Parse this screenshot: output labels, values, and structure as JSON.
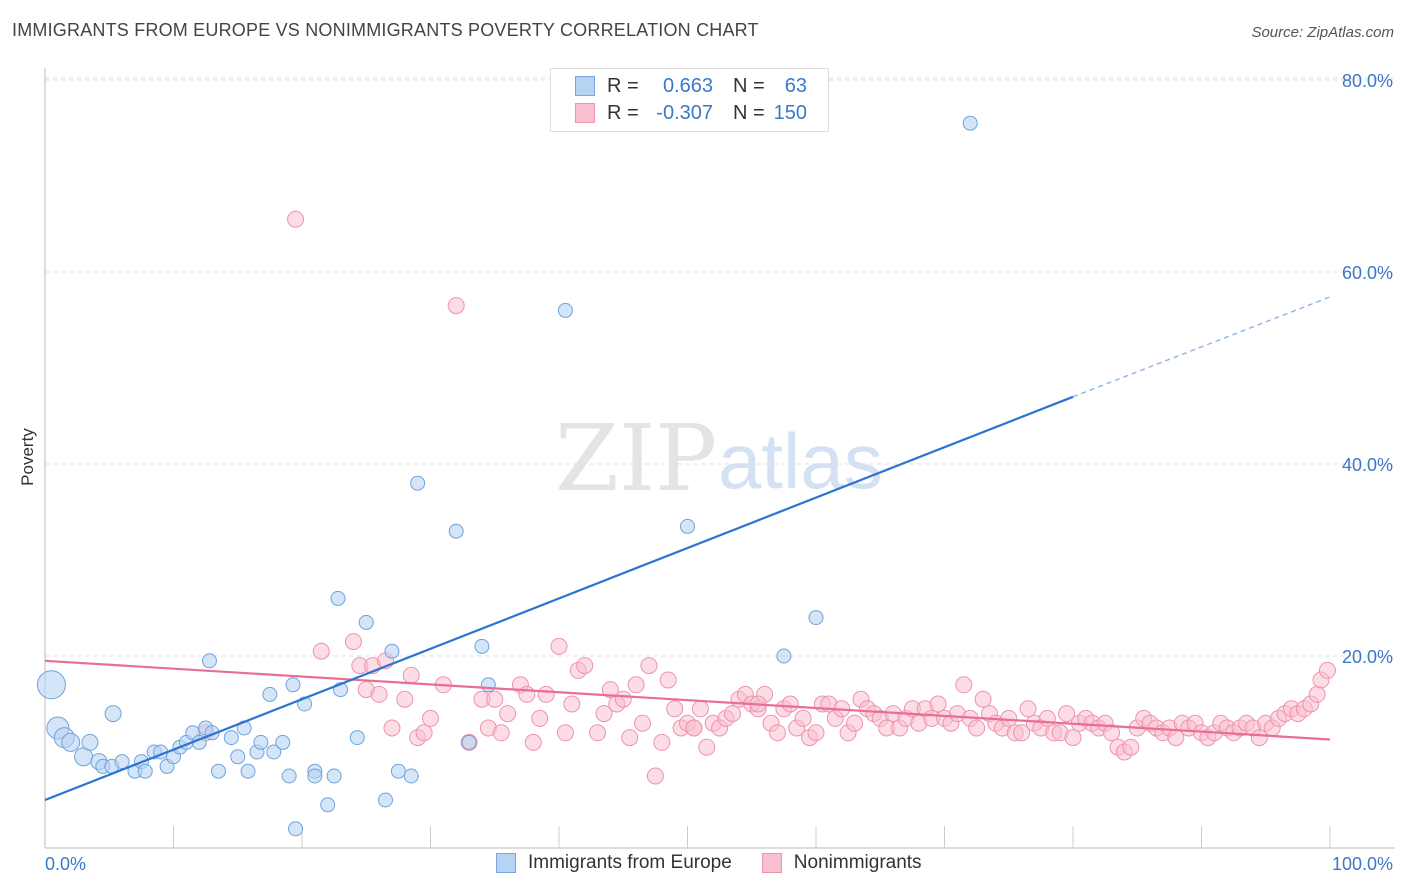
{
  "title": "IMMIGRANTS FROM EUROPE VS NONIMMIGRANTS POVERTY CORRELATION CHART",
  "source": "Source: ZipAtlas.com",
  "watermark": {
    "zip": "ZIP",
    "atlas": "atlas"
  },
  "legend": {
    "rows": [
      {
        "r_label": "R =",
        "r_value": "0.663",
        "n_label": "N =",
        "n_value": "63",
        "fill": "#b7d3f2",
        "stroke": "#7aa7db"
      },
      {
        "r_label": "R =",
        "r_value": "-0.307",
        "n_label": "N =",
        "n_value": "150",
        "fill": "#f9c0d0",
        "stroke": "#ee94ad"
      }
    ]
  },
  "bottom_legend": [
    {
      "label": "Immigrants from Europe",
      "fill": "#b7d3f2",
      "stroke": "#7aa7db"
    },
    {
      "label": "Nonimmigrants",
      "fill": "#f9c0d0",
      "stroke": "#ee94ad"
    }
  ],
  "chart_data": {
    "type": "scatter",
    "title": "IMMIGRANTS FROM EUROPE VS NONIMMIGRANTS POVERTY CORRELATION CHART",
    "xlabel": "",
    "ylabel": "Poverty",
    "xlim": [
      0,
      100
    ],
    "ylim": [
      0,
      80
    ],
    "x_tick_labels": [
      "0.0%",
      "100.0%"
    ],
    "y_tick_labels": [
      "20.0%",
      "40.0%",
      "60.0%",
      "80.0%"
    ],
    "y_ticks": [
      20,
      40,
      60,
      80
    ],
    "grid": "horizontal dashed",
    "legend_position": "top-center",
    "series": [
      {
        "name": "Immigrants from Europe",
        "color": "#6fa3dd",
        "fill": "#b7d3f2",
        "R": 0.663,
        "N": 63,
        "trend": {
          "x0": 0,
          "y0": 5.0,
          "x1": 80,
          "y1": 47.0,
          "dashed_to_x": 100,
          "dashed_to_y": 57.4
        },
        "points": [
          [
            0.5,
            17,
            14
          ],
          [
            1.0,
            12.5,
            11
          ],
          [
            1.5,
            11.5,
            10
          ],
          [
            2.0,
            11.0,
            9
          ],
          [
            3.0,
            9.5,
            9
          ],
          [
            3.5,
            11.0,
            8
          ],
          [
            4.2,
            9.0,
            8
          ],
          [
            4.5,
            8.5,
            7
          ],
          [
            5.2,
            8.5,
            7
          ],
          [
            5.3,
            14.0,
            8
          ],
          [
            6.0,
            9.0,
            7
          ],
          [
            7.0,
            8.0,
            7
          ],
          [
            7.5,
            9.0,
            7
          ],
          [
            7.8,
            8.0,
            7
          ],
          [
            8.5,
            10.0,
            7
          ],
          [
            9.0,
            10.0,
            7
          ],
          [
            9.5,
            8.5,
            7
          ],
          [
            10.0,
            9.5,
            7
          ],
          [
            10.5,
            10.5,
            7
          ],
          [
            11.0,
            11.0,
            7
          ],
          [
            11.5,
            12.0,
            7
          ],
          [
            12.0,
            11.0,
            7
          ],
          [
            12.5,
            12.5,
            7
          ],
          [
            12.8,
            19.5,
            7
          ],
          [
            13.0,
            12.0,
            7
          ],
          [
            13.5,
            8.0,
            7
          ],
          [
            14.5,
            11.5,
            7
          ],
          [
            15.0,
            9.5,
            7
          ],
          [
            15.5,
            12.5,
            7
          ],
          [
            15.8,
            8.0,
            7
          ],
          [
            16.5,
            10.0,
            7
          ],
          [
            16.8,
            11.0,
            7
          ],
          [
            17.5,
            16.0,
            7
          ],
          [
            17.8,
            10.0,
            7
          ],
          [
            18.5,
            11.0,
            7
          ],
          [
            19.0,
            7.5,
            7
          ],
          [
            19.3,
            17.0,
            7
          ],
          [
            19.5,
            2.0,
            7
          ],
          [
            20.2,
            15.0,
            7
          ],
          [
            21.0,
            8.0,
            7
          ],
          [
            21.0,
            7.5,
            7
          ],
          [
            22.0,
            4.5,
            7
          ],
          [
            22.5,
            7.5,
            7
          ],
          [
            22.8,
            26.0,
            7
          ],
          [
            23.0,
            16.5,
            7
          ],
          [
            24.3,
            11.5,
            7
          ],
          [
            25.0,
            23.5,
            7
          ],
          [
            26.5,
            5.0,
            7
          ],
          [
            27.0,
            20.5,
            7
          ],
          [
            27.5,
            8.0,
            7
          ],
          [
            28.5,
            7.5,
            7
          ],
          [
            29.0,
            38.0,
            7
          ],
          [
            32.0,
            33.0,
            7
          ],
          [
            33.0,
            11.0,
            7
          ],
          [
            34.0,
            21.0,
            7
          ],
          [
            34.5,
            17.0,
            7
          ],
          [
            40.5,
            56.0,
            7
          ],
          [
            50.0,
            33.5,
            7
          ],
          [
            57.5,
            20.0,
            7
          ],
          [
            60.0,
            24.0,
            7
          ],
          [
            72.0,
            75.5,
            7
          ]
        ]
      },
      {
        "name": "Nonimmigrants",
        "color": "#e86d97",
        "fill": "#f9c0d0",
        "R": -0.307,
        "N": 150,
        "trend": {
          "x0": 0,
          "y0": 19.5,
          "x1": 100,
          "y1": 11.3
        },
        "points": [
          [
            12.5,
            12.0
          ],
          [
            19.5,
            65.5
          ],
          [
            21.5,
            20.5
          ],
          [
            24.0,
            21.5
          ],
          [
            24.5,
            19.0
          ],
          [
            25.0,
            16.5
          ],
          [
            25.5,
            19.0
          ],
          [
            26.0,
            16.0
          ],
          [
            26.5,
            19.5
          ],
          [
            27.0,
            12.5
          ],
          [
            28.0,
            15.5
          ],
          [
            28.5,
            18.0
          ],
          [
            29.0,
            11.5
          ],
          [
            29.5,
            12.0
          ],
          [
            30.0,
            13.5
          ],
          [
            31.0,
            17.0
          ],
          [
            32.0,
            56.5
          ],
          [
            33.0,
            11.0
          ],
          [
            34.0,
            15.5
          ],
          [
            34.5,
            12.5
          ],
          [
            35.0,
            15.5
          ],
          [
            35.5,
            12.0
          ],
          [
            36.0,
            14.0
          ],
          [
            37.0,
            17.0
          ],
          [
            37.5,
            16.0
          ],
          [
            38.0,
            11.0
          ],
          [
            38.5,
            13.5
          ],
          [
            39.0,
            16.0
          ],
          [
            40.0,
            21.0
          ],
          [
            40.5,
            12.0
          ],
          [
            41.0,
            15.0
          ],
          [
            41.5,
            18.5
          ],
          [
            42.0,
            19.0
          ],
          [
            43.0,
            12.0
          ],
          [
            43.5,
            14.0
          ],
          [
            44.0,
            16.5
          ],
          [
            44.5,
            15.0
          ],
          [
            45.0,
            15.5
          ],
          [
            45.5,
            11.5
          ],
          [
            46.0,
            17.0
          ],
          [
            46.5,
            13.0
          ],
          [
            47.0,
            19.0
          ],
          [
            47.5,
            7.5
          ],
          [
            48.0,
            11.0
          ],
          [
            48.5,
            17.5
          ],
          [
            49.0,
            14.5
          ],
          [
            49.5,
            12.5
          ],
          [
            50.0,
            13.0
          ],
          [
            50.5,
            12.5
          ],
          [
            51.0,
            14.5
          ],
          [
            51.5,
            10.5
          ],
          [
            52.0,
            13.0
          ],
          [
            52.5,
            12.5
          ],
          [
            53.0,
            13.5
          ],
          [
            53.5,
            14.0
          ],
          [
            54.0,
            15.5
          ],
          [
            54.5,
            16.0
          ],
          [
            55.0,
            15.0
          ],
          [
            55.5,
            14.5
          ],
          [
            56.0,
            16.0
          ],
          [
            56.5,
            13.0
          ],
          [
            57.0,
            12.0
          ],
          [
            57.5,
            14.5
          ],
          [
            58.0,
            15.0
          ],
          [
            58.5,
            12.5
          ],
          [
            59.0,
            13.5
          ],
          [
            59.5,
            11.5
          ],
          [
            60.0,
            12.0
          ],
          [
            60.5,
            15.0
          ],
          [
            61.0,
            15.0
          ],
          [
            61.5,
            13.5
          ],
          [
            62.0,
            14.5
          ],
          [
            62.5,
            12.0
          ],
          [
            63.0,
            13.0
          ],
          [
            63.5,
            15.5
          ],
          [
            64.0,
            14.5
          ],
          [
            64.5,
            14.0
          ],
          [
            65.0,
            13.5
          ],
          [
            65.5,
            12.5
          ],
          [
            66.0,
            14.0
          ],
          [
            66.5,
            12.5
          ],
          [
            67.0,
            13.5
          ],
          [
            67.5,
            14.5
          ],
          [
            68.0,
            13.0
          ],
          [
            68.5,
            14.5
          ],
          [
            69.0,
            13.5
          ],
          [
            69.5,
            15.0
          ],
          [
            70.0,
            13.5
          ],
          [
            70.5,
            13.0
          ],
          [
            71.0,
            14.0
          ],
          [
            71.5,
            17.0
          ],
          [
            72.0,
            13.5
          ],
          [
            72.5,
            12.5
          ],
          [
            73.0,
            15.5
          ],
          [
            73.5,
            14.0
          ],
          [
            74.0,
            13.0
          ],
          [
            74.5,
            12.5
          ],
          [
            75.0,
            13.5
          ],
          [
            75.5,
            12.0
          ],
          [
            76.0,
            12.0
          ],
          [
            76.5,
            14.5
          ],
          [
            77.0,
            13.0
          ],
          [
            77.5,
            12.5
          ],
          [
            78.0,
            13.5
          ],
          [
            78.5,
            12.0
          ],
          [
            79.0,
            12.0
          ],
          [
            79.5,
            14.0
          ],
          [
            80.0,
            11.5
          ],
          [
            80.5,
            13.0
          ],
          [
            81.0,
            13.5
          ],
          [
            81.5,
            13.0
          ],
          [
            82.0,
            12.5
          ],
          [
            82.5,
            13.0
          ],
          [
            83.0,
            12.0
          ],
          [
            83.5,
            10.5
          ],
          [
            84.0,
            10.0
          ],
          [
            84.5,
            10.5
          ],
          [
            85.0,
            12.5
          ],
          [
            85.5,
            13.5
          ],
          [
            86.0,
            13.0
          ],
          [
            86.5,
            12.5
          ],
          [
            87.0,
            12.0
          ],
          [
            87.5,
            12.5
          ],
          [
            88.0,
            11.5
          ],
          [
            88.5,
            13.0
          ],
          [
            89.0,
            12.5
          ],
          [
            89.5,
            13.0
          ],
          [
            90.0,
            12.0
          ],
          [
            90.5,
            11.5
          ],
          [
            91.0,
            12.0
          ],
          [
            91.5,
            13.0
          ],
          [
            92.0,
            12.5
          ],
          [
            92.5,
            12.0
          ],
          [
            93.0,
            12.5
          ],
          [
            93.5,
            13.0
          ],
          [
            94.0,
            12.5
          ],
          [
            94.5,
            11.5
          ],
          [
            95.0,
            13.0
          ],
          [
            95.5,
            12.5
          ],
          [
            96.0,
            13.5
          ],
          [
            96.5,
            14.0
          ],
          [
            97.0,
            14.5
          ],
          [
            97.5,
            14.0
          ],
          [
            98.0,
            14.5
          ],
          [
            98.5,
            15.0
          ],
          [
            99.0,
            16.0
          ],
          [
            99.3,
            17.5
          ],
          [
            99.8,
            18.5
          ],
          [
            50.5,
            12.5
          ],
          [
            55.5,
            15.0
          ]
        ]
      }
    ]
  }
}
